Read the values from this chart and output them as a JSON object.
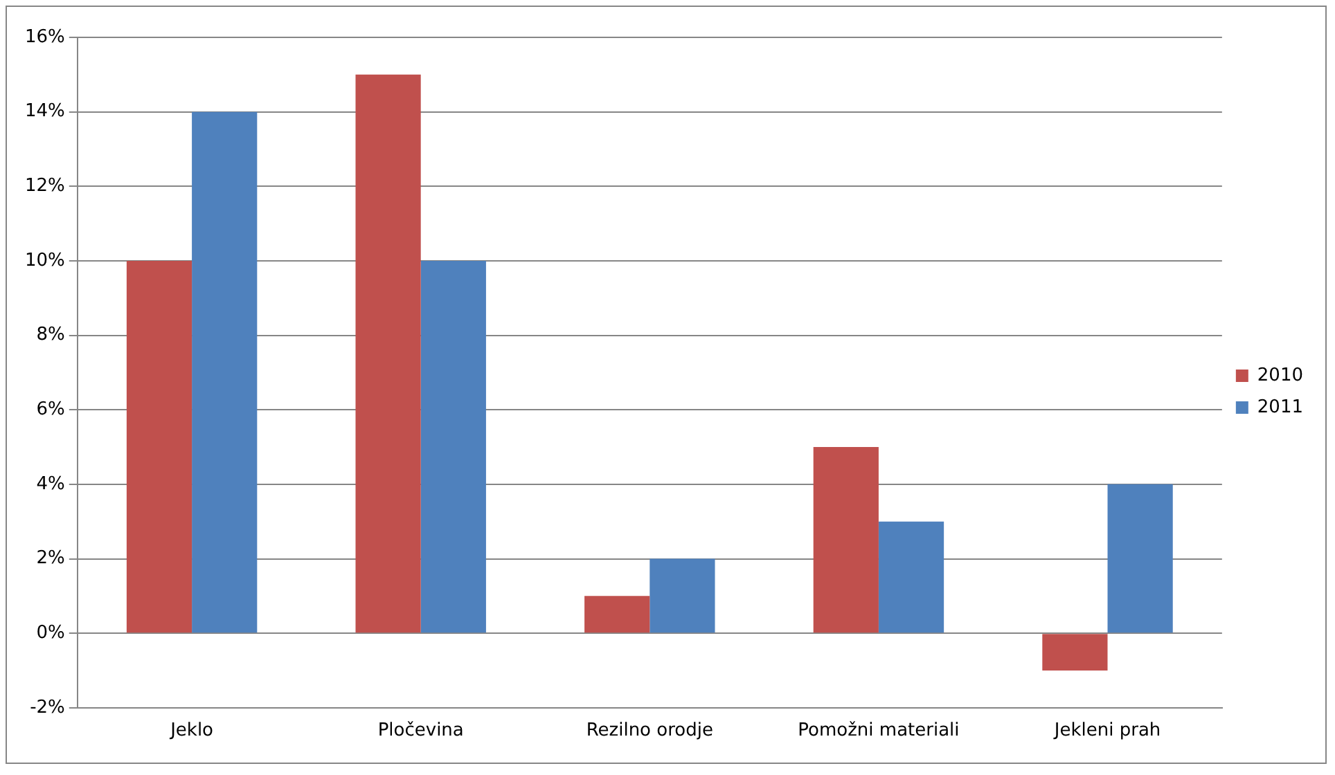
{
  "chart_data": {
    "type": "bar",
    "categories": [
      "Jeklo",
      "Pločevina",
      "Rezilno orodje",
      "Pomožni materiali",
      "Jekleni prah"
    ],
    "series": [
      {
        "name": "2010",
        "color": "#c0504d",
        "values": [
          10,
          15,
          1,
          5,
          -1
        ]
      },
      {
        "name": "2011",
        "color": "#4f81bd",
        "values": [
          14,
          10,
          2,
          3,
          4
        ]
      }
    ],
    "ylim": [
      -2,
      16
    ],
    "yticks": [
      {
        "value": -2,
        "label": "-2%"
      },
      {
        "value": 0,
        "label": "0%"
      },
      {
        "value": 2,
        "label": "2%"
      },
      {
        "value": 4,
        "label": "4%"
      },
      {
        "value": 6,
        "label": "6%"
      },
      {
        "value": 8,
        "label": "8%"
      },
      {
        "value": 10,
        "label": "10%"
      },
      {
        "value": 12,
        "label": "12%"
      },
      {
        "value": 14,
        "label": "14%"
      },
      {
        "value": 16,
        "label": "16%"
      }
    ],
    "grid": "y",
    "legend": "right"
  }
}
